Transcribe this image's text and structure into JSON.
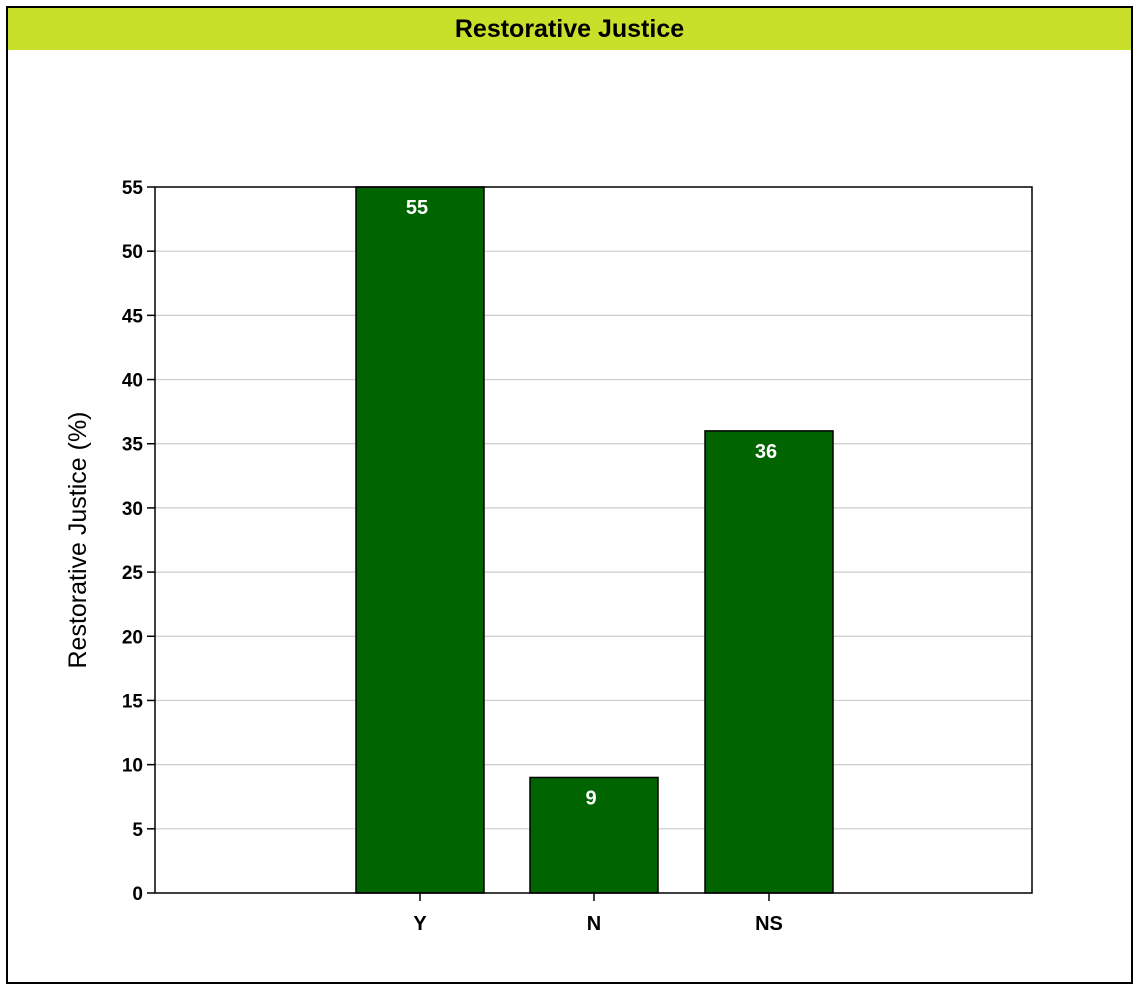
{
  "chart_data": {
    "type": "bar",
    "title": "Restorative Justice",
    "xlabel": "",
    "ylabel": "Restorative Justice  (%)",
    "categories": [
      "Y",
      "N",
      "NS"
    ],
    "values": [
      55,
      9,
      36
    ],
    "data_labels": [
      "55",
      "9",
      "36"
    ],
    "ylim": [
      0,
      55
    ],
    "yticks": [
      0,
      5,
      10,
      15,
      20,
      25,
      30,
      35,
      40,
      45,
      50,
      55
    ],
    "grid": true,
    "legend": "none",
    "colors": {
      "bar": "#006400",
      "bar_border": "#000000",
      "title_bar": "#c8e02a",
      "grid": "#cccccc"
    }
  }
}
